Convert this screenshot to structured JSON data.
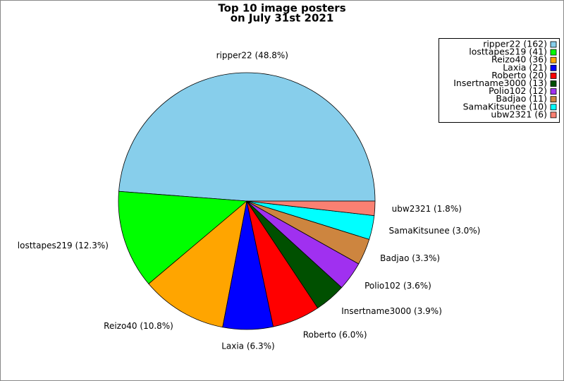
{
  "chart_data": {
    "type": "pie",
    "title": [
      "Top 10 image posters",
      "on July 31st 2021"
    ],
    "values": [
      162,
      41,
      36,
      21,
      20,
      13,
      12,
      11,
      10,
      6
    ],
    "labels": [
      "ripper22 (162)",
      "losttapes219 (41)",
      "Reizo40 (36)",
      "Laxia (21)",
      "Roberto (20)",
      "Insertname3000 (13)",
      "Polio102 (12)",
      "Badjao (11)",
      "SamaKitsunee (10)",
      "ubw2321 (6)"
    ],
    "value_labels": [
      "ripper22 (48.8%)",
      "losttapes219 (12.3%)",
      "Reizo40 (10.8%)",
      "Laxia (6.3%)",
      "Roberto (6.0%)",
      "Insertname3000 (3.9%)",
      "Polio102 (3.6%)",
      "Badjao (3.3%)",
      "SamaKitsunee (3.0%)",
      "ubw2321 (1.8%)"
    ],
    "colors": [
      "#87ceeb",
      "#00ff00",
      "#ffa500",
      "#0000ff",
      "#ff0000",
      "#005000",
      "#a030f0",
      "#cd853f",
      "#00ffff",
      "#fa8072"
    ],
    "legend": "upper right"
  }
}
